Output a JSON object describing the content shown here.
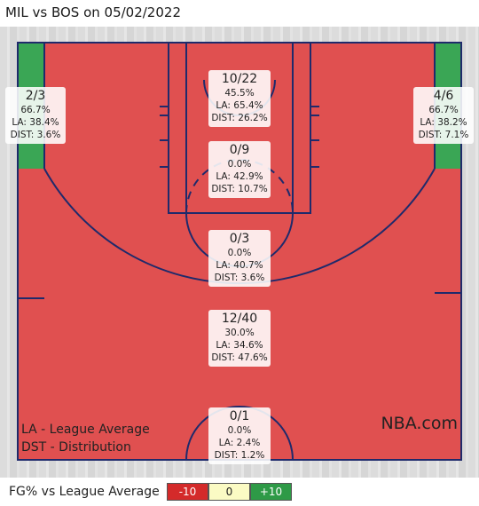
{
  "title": "MIL vs BOS on 05/02/2022",
  "colors": {
    "zone_below": "#e05050",
    "zone_above": "#3aa655",
    "court_lines": "#1f2a6b",
    "scale_low": "#d42a2a",
    "scale_mid": "#fbfbc4",
    "scale_high": "#2e9a47"
  },
  "zones": [
    {
      "id": "left-corner-three",
      "fraction": "2/3",
      "pct": "66.7%",
      "la": "LA: 38.4%",
      "dist": "DIST: 3.6%"
    },
    {
      "id": "right-corner-three",
      "fraction": "4/6",
      "pct": "66.7%",
      "la": "LA: 38.2%",
      "dist": "DIST: 7.1%"
    },
    {
      "id": "restricted-area",
      "fraction": "10/22",
      "pct": "45.5%",
      "la": "LA: 65.4%",
      "dist": "DIST: 26.2%"
    },
    {
      "id": "paint-non-ra",
      "fraction": "0/9",
      "pct": "0.0%",
      "la": "LA: 42.9%",
      "dist": "DIST: 10.7%"
    },
    {
      "id": "mid-range",
      "fraction": "0/3",
      "pct": "0.0%",
      "la": "LA: 40.7%",
      "dist": "DIST: 3.6%"
    },
    {
      "id": "above-break-three",
      "fraction": "12/40",
      "pct": "30.0%",
      "la": "LA: 34.6%",
      "dist": "DIST: 47.6%"
    },
    {
      "id": "backcourt",
      "fraction": "0/1",
      "pct": "0.0%",
      "la": "LA: 2.4%",
      "dist": "DIST: 1.2%"
    }
  ],
  "legend_notes": {
    "la": "LA - League Average",
    "dst": "DST - Distribution"
  },
  "brand": "NBA.com",
  "footer": {
    "label": "FG% vs League Average",
    "scale": [
      "-10",
      "0",
      "+10"
    ]
  }
}
